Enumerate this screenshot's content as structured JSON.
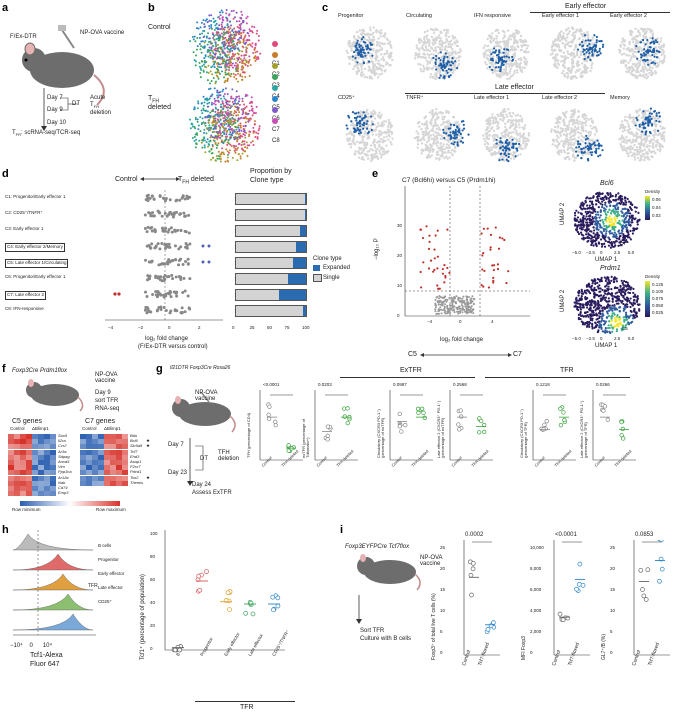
{
  "panels": {
    "a": {
      "letter": "a",
      "mouse_label": "F/Ex-DTR",
      "vaccine": "NP-OVA vaccine",
      "day7": "Day 7",
      "day9": "Day 9",
      "dt": "DT",
      "acute1": "Acute",
      "acute2": "T",
      "acute2_sub": "FH",
      "acute3": "deletion",
      "day10": "Day 10",
      "assay_prefix": "T",
      "assay_sub": "FR",
      "assay": ": scRNA-seq/TCR-seq"
    },
    "b": {
      "letter": "b",
      "control": "Control",
      "tfh_deleted_1": "T",
      "tfh_deleted_sub": "FH",
      "tfh_deleted_2": "deleted",
      "clusters": [
        "C1",
        "C2",
        "C3",
        "C4",
        "C5",
        "C6",
        "C7",
        "C8"
      ],
      "colors": [
        "#e04b7a",
        "#c97d2a",
        "#a3a02a",
        "#3aa25a",
        "#2aa6a0",
        "#2a84c9",
        "#7b5cc9",
        "#c94fb5"
      ]
    },
    "c": {
      "letter": "c",
      "early_header": "Early effector",
      "late_header": "Late effector",
      "row1": [
        "Progenitor",
        "Circulating",
        "IFN responsive",
        "Early effector 1",
        "Early effector 2"
      ],
      "row2": [
        "CD25⁺",
        "TNFR⁺",
        "Late effector 1",
        "Late effector 2",
        "Memory"
      ]
    },
    "d": {
      "letter": "d",
      "control_arrow": "Control",
      "deleted_arrow": "T",
      "deleted_sub": "FH",
      "deleted_rest": " deleted",
      "rows": [
        "C1: Progenitor/Early effector 1",
        "C2: CD25⁺/TNFR⁺",
        "C3: Early effector 1",
        "C4: Early effector 2/Memory",
        "C5: Late effector 1/Circulating",
        "C6: Progenitor/Early effector 1",
        "C7: Late effector 2",
        "C8: IFN-responsive"
      ],
      "xlabel": "log₂ fold change",
      "xlabel2": "(F/Ex-DTR versus control)",
      "xticks": [
        "−4",
        "−2",
        "0",
        "2"
      ],
      "prop_title1": "Proportion by",
      "prop_title2": "Clone type",
      "prop_ticks": [
        "0",
        "25",
        "50",
        "75",
        "100"
      ],
      "legend_title": "Clone type",
      "legend_expanded": "Expanded",
      "legend_single": "Single",
      "expanded_pct": [
        2,
        2,
        8,
        15,
        18,
        26,
        38,
        4
      ]
    },
    "e": {
      "letter": "e",
      "title": "C7 (Bcl6hi) versus C5 (Prdm1hi)",
      "ylabel": "−log₁₀ P",
      "xlabel": "log₂ fold change",
      "xticks": [
        "−4",
        "0",
        "4"
      ],
      "yticks": [
        "0",
        "10",
        "20",
        "30"
      ],
      "c5": "C5",
      "c7": "C7",
      "gene1": "Bcl6",
      "gene2": "Prdm1",
      "density": "Density",
      "d1": [
        "0.06",
        "0.04",
        "0.02"
      ],
      "d2": [
        "0.125",
        "0.100",
        "0.075",
        "0.050",
        "0.025"
      ],
      "umap1": "UMAP 1",
      "umap2": "UMAP 2",
      "umap_ticks": [
        "−5.0",
        "−2.5",
        "0",
        "2.5",
        "5.0"
      ],
      "lab_c7": "C7",
      "lab_c5": "C5"
    },
    "f": {
      "letter": "f",
      "mouse": "Foxp3Cre Prdm1flox",
      "vaccine": "NP-OVA vaccine",
      "day": "Day 9",
      "sort": "sort TFR",
      "rnaseq": "RNA-seq",
      "c5_title": "C5 genes",
      "c7_title": "C7 genes",
      "control": "Control",
      "dblimp": "ΔBlimp1",
      "c5_genes": [
        "Sox5",
        "Il2ra",
        "Ccr2",
        "Ar3a",
        "Sdpag",
        "Anxa5",
        "Vim",
        "Ppp3ca",
        "Ar1Ac",
        "Nab",
        "Cd74",
        "Emp3"
      ],
      "c7_genes": [
        "Btla",
        "Bcl6",
        "Slc9a9",
        "Tcf7",
        "Ehd3",
        "Asap1",
        "P2rx7",
        "Pdcd1",
        "Tox2",
        "Themis"
      ],
      "stars": [
        "★",
        "★",
        "★"
      ],
      "min": "Row minimum",
      "max": "Row maximum"
    },
    "g": {
      "letter": "g",
      "mouse": "Il21DTR Foxp3Cre Rosa26",
      "vaccine": "NP-OVA vaccine",
      "day7": "Day 7",
      "day23": "Day 23",
      "dt": "DT",
      "deletion": "TFH deletion",
      "day24": "Day 24",
      "assess": "Assess ExTFR",
      "extfr_header": "ExTFR",
      "tfr_header": "TFR",
      "pvals": [
        "<0.0001",
        "0.0203",
        "0.0987",
        "0.2568",
        "0.1218",
        "0.0266"
      ],
      "ylabels": [
        "TFH (percentage of CD4)",
        "exTFR (percentage of Tdtomato+)",
        "Circulatory (CXCR3 PD-1⁺) (percentage of exTFR)",
        "Late effector 2 (CXCR3⁺ PD-1⁺) (percentage of exTFR)",
        "Circulatory (CXCR3 PD-1⁺) (percentage of TFR)",
        "Late effector 2 (CXCR3⁺ PD-1⁺) (percentage of TFR)"
      ],
      "xcats": [
        "Control",
        "TFH deleted"
      ]
    },
    "h": {
      "letter": "h",
      "hist_labels": [
        "B cells",
        "Progenitor",
        "Early effector",
        "Late effector",
        "CD25⁺"
      ],
      "tfr": "TFR",
      "xlabel": "Tcf1-Alexa",
      "xlabel2": "Fluor 647",
      "xticks": [
        "−10⁴",
        "0",
        "10⁴"
      ],
      "scatter_ylabel": "Tcf1⁺ (percentage of population)",
      "scatter_yticks": [
        "0",
        "20",
        "40",
        "60",
        "80",
        "100"
      ],
      "scatter_cats": [
        "B",
        "Progenitor",
        "Early effector",
        "Late effector",
        "CD25⁺/TNFR⁺"
      ],
      "scatter_means": [
        2,
        60,
        42,
        40,
        40
      ],
      "scatter_colors": [
        "#555",
        "#d9534f",
        "#e0a030",
        "#3aa25a",
        "#2a84c9"
      ],
      "bottom_tfr": "TFR"
    },
    "i": {
      "letter": "i",
      "mouse": "Foxp3EYFPCre Tcf7flox",
      "vaccine": "NP-OVA vaccine",
      "sort": "Sort TFR",
      "culture": "Culture with B cells",
      "p1": "0.0002",
      "p2": "<0.0001",
      "p3": "0.0853",
      "y1": "Foxp3⁺ of total live T cells (%)",
      "y2": "MFI Foxp3",
      "y3": "GL7⁺/B (%)",
      "y1ticks": [
        "0",
        "5",
        "10",
        "15",
        "20",
        "25"
      ],
      "y2ticks": [
        "0",
        "2,000",
        "4,000",
        "6,000",
        "8,000",
        "10,000"
      ],
      "y3ticks": [
        "0",
        "5",
        "10",
        "15",
        "20",
        "25"
      ],
      "cats": [
        "Control",
        "Tcf7-floxed"
      ],
      "means1": [
        18.5,
        7.2
      ],
      "means2": [
        3600,
        7200
      ],
      "means3": [
        17.5,
        22.5
      ]
    }
  }
}
